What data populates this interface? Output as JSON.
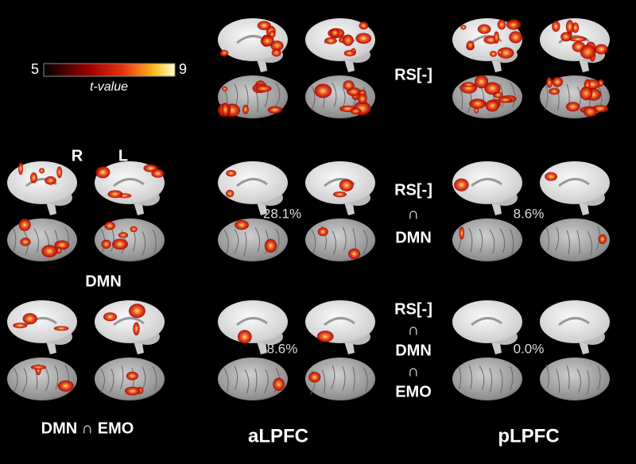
{
  "colorbar": {
    "min": 5,
    "max": 9,
    "label": "t-value"
  },
  "hemispheres": [
    "R",
    "L"
  ],
  "network_labels": [
    "DMN",
    "DMN ∩ EMO"
  ],
  "seed_labels": [
    "aLPFC",
    "pLPFC"
  ],
  "overlap_labels": [
    [
      "RS[-]"
    ],
    [
      "RS[-]",
      "∩",
      "DMN"
    ],
    [
      "RS[-]",
      "∩",
      "DMN",
      "∩",
      "EMO"
    ]
  ],
  "percentages": [
    [
      "28.1%",
      "8.6%"
    ],
    [
      "8.6%",
      "0.0%"
    ]
  ]
}
